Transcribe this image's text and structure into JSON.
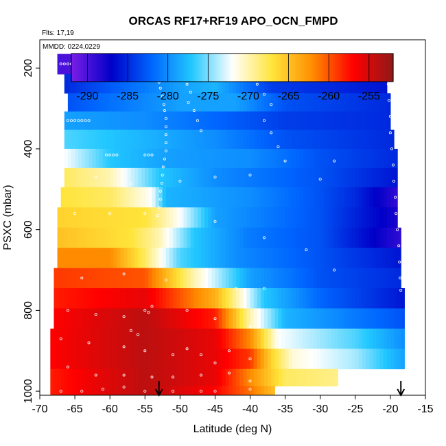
{
  "chart_data": {
    "type": "heatmap",
    "title": "ORCAS RF17+RF19 APO_OCN_FMPD",
    "annotations": [
      "Flts: 17,19",
      "MMDD: 0224,0229"
    ],
    "xlabel": "Latitude (deg N)",
    "ylabel": "PSXC (mbar)",
    "xlim": [
      -70,
      -15
    ],
    "ylim": [
      1010,
      130
    ],
    "x_ticks": [
      -70,
      -65,
      -60,
      -55,
      -50,
      -45,
      -40,
      -35,
      -30,
      -25,
      -20,
      -15
    ],
    "y_ticks": [
      200,
      400,
      600,
      800,
      1000
    ],
    "colorbar": {
      "range": [
        -292,
        -252
      ],
      "ticks": [
        -290,
        -285,
        -280,
        -275,
        -270,
        -265,
        -260,
        -255
      ],
      "colors": [
        "#7a1ee6",
        "#0000c8",
        "#0066ff",
        "#22c8ff",
        "#ffffff",
        "#ffe43a",
        "#ff8c00",
        "#ff0000",
        "#8e1a1a"
      ],
      "boundaries": [
        -290,
        -285,
        -280,
        -275,
        -265,
        -260,
        -255
      ]
    },
    "rows": [
      {
        "p": 190,
        "start": -67.5,
        "end": -22.0,
        "knots": [
          [
            -67.5,
            -290
          ],
          [
            -57,
            -290
          ],
          [
            -53,
            -290
          ],
          [
            -52.5,
            -287
          ],
          [
            -45,
            -286
          ],
          [
            -35,
            -286
          ],
          [
            -22,
            -286
          ]
        ]
      },
      {
        "p": 240,
        "start": -66.5,
        "end": -20.5,
        "knots": [
          [
            -66.5,
            -285
          ],
          [
            -50,
            -279
          ],
          [
            -45,
            -278
          ],
          [
            -37,
            -284
          ],
          [
            -20.5,
            -286
          ]
        ]
      },
      {
        "p": 285,
        "start": -66.0,
        "end": -20.0,
        "knots": [
          [
            -66,
            -283
          ],
          [
            -50,
            -279
          ],
          [
            -42,
            -279
          ],
          [
            -35,
            -283
          ],
          [
            -20,
            -285
          ]
        ]
      },
      {
        "p": 330,
        "start": -66.5,
        "end": -20.0,
        "knots": [
          [
            -66.5,
            -279
          ],
          [
            -55,
            -280
          ],
          [
            -45,
            -282
          ],
          [
            -35,
            -284
          ],
          [
            -20,
            -285
          ]
        ]
      },
      {
        "p": 375,
        "start": -66.5,
        "end": -19.5,
        "knots": [
          [
            -66.5,
            -276
          ],
          [
            -55,
            -278
          ],
          [
            -45,
            -280
          ],
          [
            -35,
            -283
          ],
          [
            -19.5,
            -285
          ]
        ]
      },
      {
        "p": 425,
        "start": -66.5,
        "end": -19.0,
        "knots": [
          [
            -66.5,
            -272
          ],
          [
            -60,
            -277
          ],
          [
            -52,
            -279
          ],
          [
            -40,
            -280
          ],
          [
            -30,
            -283
          ],
          [
            -19,
            -285
          ]
        ]
      },
      {
        "p": 470,
        "start": -66.5,
        "end": -19.0,
        "knots": [
          [
            -66.5,
            -268
          ],
          [
            -60,
            -270
          ],
          [
            -53,
            -277
          ],
          [
            -45,
            -280
          ],
          [
            -30,
            -283
          ],
          [
            -19,
            -286
          ]
        ]
      },
      {
        "p": 520,
        "start": -67.0,
        "end": -19.0,
        "knots": [
          [
            -67,
            -267
          ],
          [
            -60,
            -268
          ],
          [
            -54,
            -272
          ],
          [
            -52,
            -278
          ],
          [
            -40,
            -280
          ],
          [
            -30,
            -283
          ],
          [
            -25,
            -285
          ],
          [
            -19,
            -289
          ]
        ]
      },
      {
        "p": 570,
        "start": -67.5,
        "end": -19.0,
        "knots": [
          [
            -67.5,
            -266
          ],
          [
            -55,
            -267
          ],
          [
            -50,
            -272
          ],
          [
            -45,
            -279
          ],
          [
            -30,
            -283
          ],
          [
            -19,
            -288
          ]
        ]
      },
      {
        "p": 620,
        "start": -67.5,
        "end": -18.5,
        "knots": [
          [
            -67.5,
            -265
          ],
          [
            -57,
            -267
          ],
          [
            -53,
            -270
          ],
          [
            -48,
            -277
          ],
          [
            -40,
            -281
          ],
          [
            -30,
            -283
          ],
          [
            -18.5,
            -289
          ]
        ]
      },
      {
        "p": 670,
        "start": -67.5,
        "end": -18.5,
        "knots": [
          [
            -67.5,
            -262
          ],
          [
            -60,
            -262
          ],
          [
            -55,
            -268
          ],
          [
            -50,
            -276
          ],
          [
            -42,
            -280
          ],
          [
            -30,
            -283
          ],
          [
            -18.5,
            -286
          ]
        ]
      },
      {
        "p": 720,
        "start": -68.0,
        "end": -18.5,
        "knots": [
          [
            -68,
            -259
          ],
          [
            -55,
            -260
          ],
          [
            -48,
            -270
          ],
          [
            -40,
            -279
          ],
          [
            -30,
            -283
          ],
          [
            -18.5,
            -285
          ]
        ]
      },
      {
        "p": 770,
        "start": -68.0,
        "end": -18.0,
        "knots": [
          [
            -68,
            -258
          ],
          [
            -55,
            -256
          ],
          [
            -45,
            -264
          ],
          [
            -38,
            -277
          ],
          [
            -30,
            -282
          ],
          [
            -18,
            -286
          ]
        ]
      },
      {
        "p": 820,
        "start": -68.0,
        "end": -18.0,
        "knots": [
          [
            -68,
            -257
          ],
          [
            -55,
            -254
          ],
          [
            -45,
            -258
          ],
          [
            -40,
            -270
          ],
          [
            -35,
            -278
          ],
          [
            -25,
            -281
          ],
          [
            -18,
            -283
          ]
        ]
      },
      {
        "p": 870,
        "start": -68.5,
        "end": -18.0,
        "knots": [
          [
            -68.5,
            -257
          ],
          [
            -55,
            -254
          ],
          [
            -45,
            -256
          ],
          [
            -40,
            -262
          ],
          [
            -36,
            -272
          ],
          [
            -25,
            -276
          ],
          [
            -18,
            -280
          ]
        ]
      },
      {
        "p": 920,
        "start": -68.5,
        "end": -18.0,
        "knots": [
          [
            -68.5,
            -257
          ],
          [
            -55,
            -254
          ],
          [
            -45,
            -256
          ],
          [
            -40,
            -259
          ],
          [
            -37,
            -266
          ],
          [
            -34,
            -271
          ],
          [
            -25,
            -274
          ],
          [
            -18,
            -279
          ]
        ]
      },
      {
        "p": 970,
        "start": -68.5,
        "end": -27.5,
        "knots": [
          [
            -68.5,
            -258
          ],
          [
            -55,
            -254
          ],
          [
            -45,
            -256
          ],
          [
            -40,
            -262
          ],
          [
            -35,
            -268
          ],
          [
            -27.5,
            -269
          ]
        ]
      },
      {
        "p": 1005,
        "start": -68.5,
        "end": -36.5,
        "knots": [
          [
            -68.5,
            -258
          ],
          [
            -55,
            -254
          ],
          [
            -45,
            -257
          ],
          [
            -40,
            -261
          ],
          [
            -36.5,
            -265
          ]
        ]
      }
    ],
    "points": [
      [
        -67,
        190
      ],
      [
        -66.5,
        190
      ],
      [
        -66,
        190
      ],
      [
        -65.5,
        190
      ],
      [
        -65,
        190
      ],
      [
        -64.5,
        190
      ],
      [
        -64,
        190
      ],
      [
        -63.5,
        190
      ],
      [
        -63,
        190
      ],
      [
        -62.5,
        190
      ],
      [
        -62,
        190
      ],
      [
        -61.5,
        190
      ],
      [
        -61,
        190
      ],
      [
        -60.5,
        190
      ],
      [
        -60,
        190
      ],
      [
        -59.5,
        190
      ],
      [
        -59,
        190
      ],
      [
        -58.5,
        190
      ],
      [
        -58,
        190
      ],
      [
        -57.5,
        190
      ],
      [
        -57,
        190
      ],
      [
        -56.5,
        190
      ],
      [
        -56,
        190
      ],
      [
        -52,
        190
      ],
      [
        -51.5,
        190
      ],
      [
        -51,
        190
      ],
      [
        -50.5,
        190
      ],
      [
        -50,
        190
      ],
      [
        -49.5,
        190
      ],
      [
        -49,
        190
      ],
      [
        -48.5,
        190
      ],
      [
        -48,
        190
      ],
      [
        -47.5,
        190
      ],
      [
        -34,
        190
      ],
      [
        -33,
        190
      ],
      [
        -32,
        190
      ],
      [
        -31,
        190
      ],
      [
        -30,
        190
      ],
      [
        -29,
        190
      ],
      [
        -28,
        190
      ],
      [
        -27,
        190
      ],
      [
        -26,
        190
      ],
      [
        -25,
        190
      ],
      [
        -24,
        190
      ],
      [
        -23,
        190
      ],
      [
        -22.5,
        190
      ],
      [
        -53.5,
        198
      ],
      [
        -53.2,
        215
      ],
      [
        -53,
        235
      ],
      [
        -52.8,
        250
      ],
      [
        -52.5,
        270
      ],
      [
        -52.3,
        290
      ],
      [
        -52.2,
        305
      ],
      [
        -52,
        325
      ],
      [
        -52,
        345
      ],
      [
        -52,
        365
      ],
      [
        -52,
        385
      ],
      [
        -52,
        405
      ],
      [
        -52.2,
        425
      ],
      [
        -52.4,
        445
      ],
      [
        -52.5,
        465
      ],
      [
        -52.6,
        485
      ],
      [
        -52.8,
        505
      ],
      [
        -52.8,
        525
      ],
      [
        -53,
        545
      ],
      [
        -53.2,
        565
      ],
      [
        -49,
        240
      ],
      [
        -48.5,
        260
      ],
      [
        -48.8,
        285
      ],
      [
        -48,
        305
      ],
      [
        -47.5,
        330
      ],
      [
        -47,
        355
      ],
      [
        -40,
        210
      ],
      [
        -39,
        240
      ],
      [
        -38,
        265
      ],
      [
        -37,
        290
      ],
      [
        -38,
        330
      ],
      [
        -37,
        360
      ],
      [
        -36,
        395
      ],
      [
        -35,
        430
      ],
      [
        -20.5,
        200
      ],
      [
        -20.3,
        240
      ],
      [
        -20.2,
        280
      ],
      [
        -20,
        320
      ],
      [
        -20,
        360
      ],
      [
        -19.8,
        400
      ],
      [
        -19.6,
        440
      ],
      [
        -19.5,
        480
      ],
      [
        -19.3,
        520
      ],
      [
        -19.2,
        560
      ],
      [
        -19,
        600
      ],
      [
        -18.8,
        640
      ],
      [
        -18.7,
        680
      ],
      [
        -18.6,
        720
      ],
      [
        -18.5,
        750
      ],
      [
        -66,
        330
      ],
      [
        -65.5,
        330
      ],
      [
        -65,
        330
      ],
      [
        -64.5,
        330
      ],
      [
        -64,
        330
      ],
      [
        -63.5,
        330
      ],
      [
        -63,
        330
      ],
      [
        -60.5,
        415
      ],
      [
        -60,
        415
      ],
      [
        -59.5,
        415
      ],
      [
        -59,
        415
      ],
      [
        -55,
        415
      ],
      [
        -54.5,
        415
      ],
      [
        -54,
        415
      ],
      [
        -62,
        470
      ],
      [
        -57,
        485
      ],
      [
        -50,
        480
      ],
      [
        -45,
        470
      ],
      [
        -40,
        465
      ],
      [
        -30,
        475
      ],
      [
        -28,
        430
      ],
      [
        -65,
        560
      ],
      [
        -60,
        560
      ],
      [
        -55,
        560
      ],
      [
        -50,
        565
      ],
      [
        -45,
        580
      ],
      [
        -38,
        620
      ],
      [
        -32,
        650
      ],
      [
        -28,
        700
      ],
      [
        -64,
        720
      ],
      [
        -58,
        710
      ],
      [
        -52,
        725
      ],
      [
        -47,
        735
      ],
      [
        -42,
        745
      ],
      [
        -38,
        745
      ],
      [
        -66,
        800
      ],
      [
        -62,
        810
      ],
      [
        -58,
        815
      ],
      [
        -54,
        790
      ],
      [
        -49,
        800
      ],
      [
        -45,
        820
      ],
      [
        -40,
        840
      ],
      [
        -36,
        860
      ],
      [
        -67,
        870
      ],
      [
        -63,
        880
      ],
      [
        -58,
        890
      ],
      [
        -55,
        900
      ],
      [
        -51,
        910
      ],
      [
        -47,
        910
      ],
      [
        -43,
        900
      ],
      [
        -40,
        920
      ],
      [
        -66,
        940
      ],
      [
        -62,
        960
      ],
      [
        -58,
        960
      ],
      [
        -54,
        965
      ],
      [
        -51,
        965
      ],
      [
        -47,
        960
      ],
      [
        -43,
        955
      ],
      [
        -40,
        975
      ],
      [
        -67,
        1000
      ],
      [
        -64,
        1000
      ],
      [
        -61,
        995
      ],
      [
        -58,
        990
      ],
      [
        -55,
        1000
      ],
      [
        -51,
        1000
      ],
      [
        -47,
        1000
      ],
      [
        -45,
        1000
      ],
      [
        -40,
        995
      ],
      [
        -55,
        800
      ],
      [
        -54.5,
        805
      ],
      [
        -57,
        850
      ],
      [
        -56,
        860
      ],
      [
        -49,
        895
      ],
      [
        -45,
        930
      ]
    ],
    "arrows": [
      -53.0,
      -18.5
    ]
  }
}
